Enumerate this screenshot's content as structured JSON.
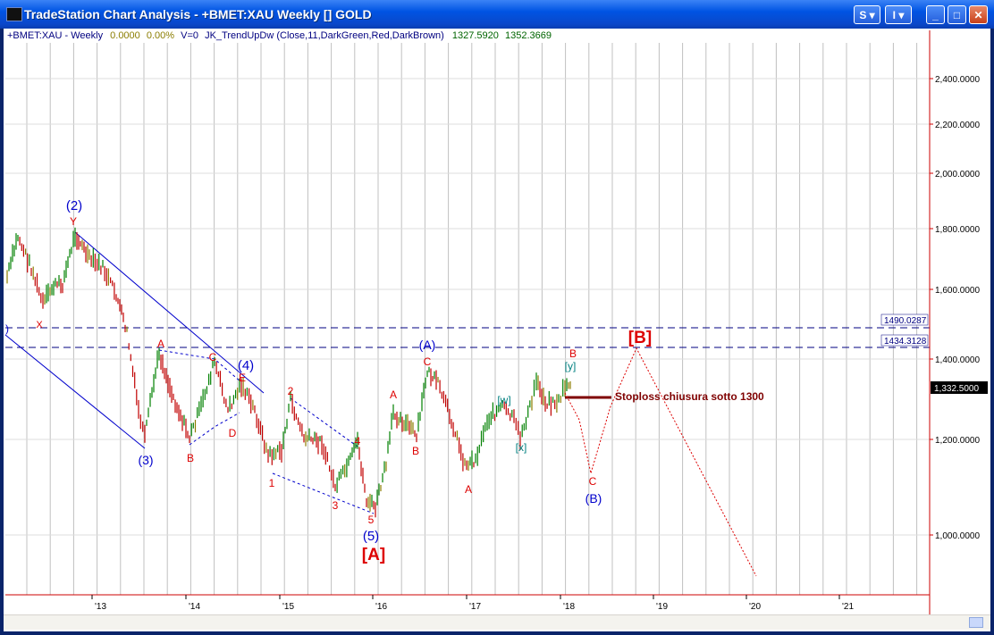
{
  "window": {
    "title": "TradeStation Chart Analysis - +BMET:XAU Weekly [] GOLD",
    "buttons": {
      "s_label": "S",
      "i_label": "I",
      "minimize": "_",
      "maximize": "□",
      "close": "✕"
    }
  },
  "status": {
    "symbol": "+BMET:XAU - Weekly",
    "change": "0.0000",
    "pct": "0.00%",
    "volume": "V=0",
    "indicator": "JK_TrendUpDw (Close,11,DarkGreen,Red,DarkBrown)",
    "val1": "1327.5920",
    "val2": "1352.3669"
  },
  "colors": {
    "axis": "#cc0000",
    "grid": "#c0c0c0",
    "up_bar": "#008000",
    "down_bar": "#c00000",
    "neutral_bar": "#8b7d00",
    "wave_blue": "#0000cc",
    "wave_red": "#dd0000",
    "wave_teal": "#008080",
    "stoploss": "#7f0000"
  },
  "price_axis": {
    "labels": [
      "2,400.0000",
      "2,200.0000",
      "2,000.0000",
      "1,800.0000",
      "1,600.0000",
      "1,400.0000",
      "1,200.0000",
      "1,000.0000"
    ],
    "current_price": "1,332.5000"
  },
  "time_axis": {
    "labels": [
      "'13",
      "'14",
      "'15",
      "'16",
      "'17",
      "'18",
      "'19",
      "'20",
      "'21"
    ]
  },
  "horizontal_lines": [
    {
      "label": "1490.0287"
    },
    {
      "label": "1434.3128"
    }
  ],
  "annotations": {
    "stoploss": "Stoploss chiusura sotto 1300",
    "wave_2": "(2)",
    "y": "Y",
    "x": "X",
    "wave_3": "(3)",
    "wave_4": "(4)",
    "wave_5": "(5)",
    "a1": "A",
    "b1": "B",
    "c1": "C",
    "d1": "D",
    "e1": "E",
    "n1": "1",
    "n2": "2",
    "n3": "3",
    "n4": "4",
    "n5": "5",
    "a2": "A",
    "b2": "B",
    "c2": "C",
    "wave_A_paren": "(A)",
    "a3": "A",
    "w": "[w]",
    "xb": "[x]",
    "yb": "[y]",
    "b3": "B",
    "c3": "C",
    "wave_B_paren": "(B)",
    "big_A": "[A]",
    "big_B": "[B]",
    "left_paren": ")"
  }
}
